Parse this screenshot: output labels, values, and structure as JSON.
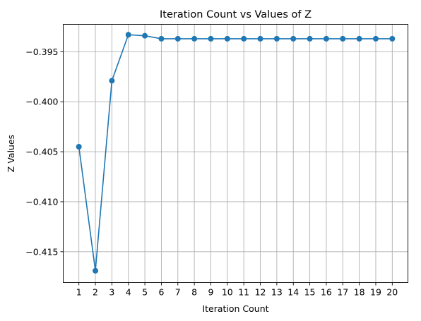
{
  "chart_data": {
    "type": "line",
    "title": "Iteration Count vs Values of Z",
    "xlabel": "Iteration Count",
    "ylabel": "Z Values",
    "x": [
      1,
      2,
      3,
      4,
      5,
      6,
      7,
      8,
      9,
      10,
      11,
      12,
      13,
      14,
      15,
      16,
      17,
      18,
      19,
      20
    ],
    "series": [
      {
        "values": [
          -0.4045,
          -0.4169,
          -0.3979,
          -0.3933,
          -0.3934,
          -0.3937,
          -0.3937,
          -0.3937,
          -0.3937,
          -0.3937,
          -0.3937,
          -0.3937,
          -0.3937,
          -0.3937,
          -0.3937,
          -0.3937,
          -0.3937,
          -0.3937,
          -0.3937,
          -0.3937
        ],
        "color": "#1f77b4",
        "marker": "circle"
      }
    ],
    "xticks": [
      "1",
      "2",
      "3",
      "4",
      "5",
      "6",
      "7",
      "8",
      "9",
      "10",
      "11",
      "12",
      "13",
      "14",
      "15",
      "16",
      "17",
      "18",
      "19",
      "20"
    ],
    "yticks": [
      -0.415,
      -0.41,
      -0.405,
      -0.4,
      -0.395
    ],
    "ytick_labels": [
      "−0.415",
      "−0.410",
      "−0.405",
      "−0.400",
      "−0.395"
    ],
    "xlim": [
      0.05,
      20.95
    ],
    "ylim": [
      -0.41808,
      -0.39226
    ],
    "grid": true,
    "legend": "none"
  }
}
